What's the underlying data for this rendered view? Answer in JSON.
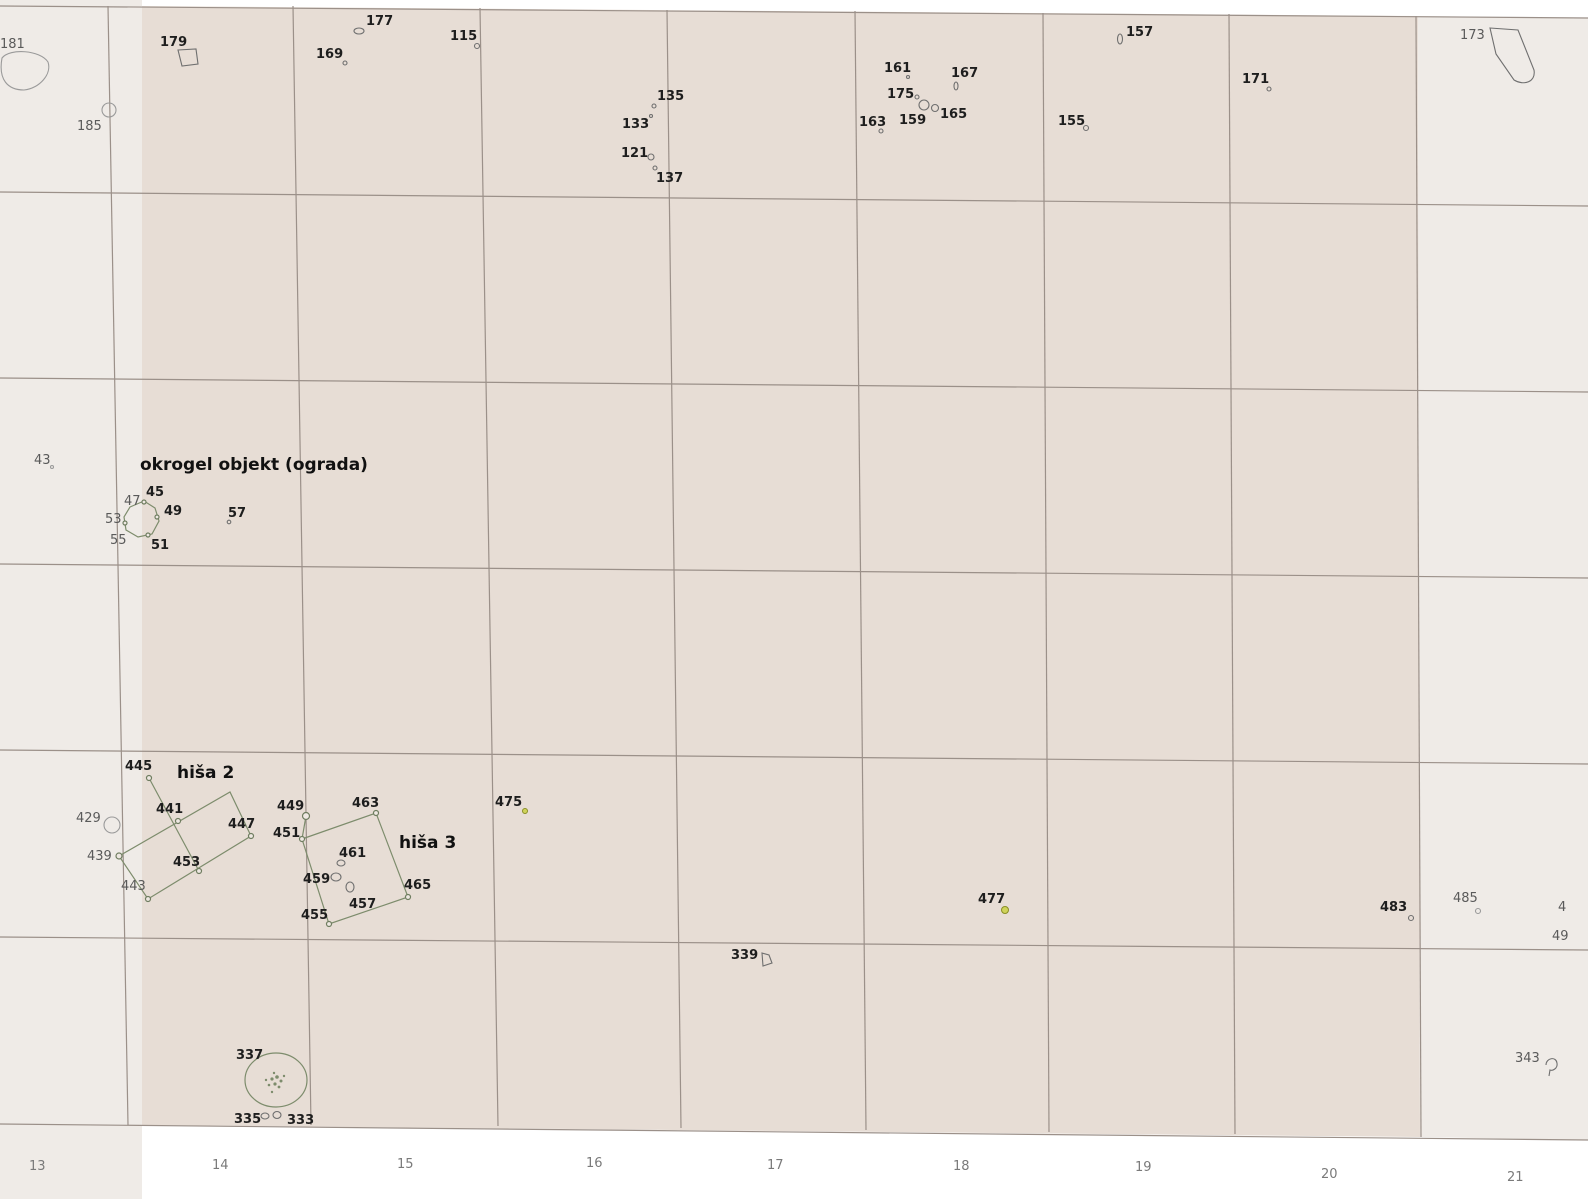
{
  "map": {
    "colors": {
      "excavated_area": "#e7ddd5",
      "outer_area": "#efebe7",
      "grid_line": "#9b9089",
      "structure_outline": "#7d8c6c",
      "highlight_feature": "#cfd35a"
    },
    "x_axis_labels": [
      "13",
      "14",
      "15",
      "16",
      "17",
      "18",
      "19",
      "20",
      "21"
    ],
    "structures": {
      "round_object": "okrogel objekt (ograda)",
      "house_2": "hiša 2",
      "house_3": "hiša 3"
    },
    "feature_labels": {
      "f181": "181",
      "f179": "179",
      "f177": "177",
      "f169": "169",
      "f115": "115",
      "f185": "185",
      "f135": "135",
      "f133": "133",
      "f121": "121",
      "f137": "137",
      "f161": "161",
      "f167": "167",
      "f175": "175",
      "f163": "163",
      "f159": "159",
      "f165": "165",
      "f157": "157",
      "f155": "155",
      "f171": "171",
      "f173": "173",
      "f43": "43",
      "f45": "45",
      "f47": "47",
      "f49": "49",
      "f53": "53",
      "f55": "55",
      "f51": "51",
      "f57": "57",
      "f445": "445",
      "f441": "441",
      "f447": "447",
      "f429": "429",
      "f439": "439",
      "f453": "453",
      "f443": "443",
      "f449": "449",
      "f463": "463",
      "f451": "451",
      "f461": "461",
      "f459": "459",
      "f465": "465",
      "f457": "457",
      "f455": "455",
      "f475": "475",
      "f477": "477",
      "f339": "339",
      "f483": "483",
      "f485": "485",
      "f337": "337",
      "f335": "335",
      "f333": "333",
      "f343": "343",
      "f_cut1": "4",
      "f_cut2": "49"
    }
  }
}
